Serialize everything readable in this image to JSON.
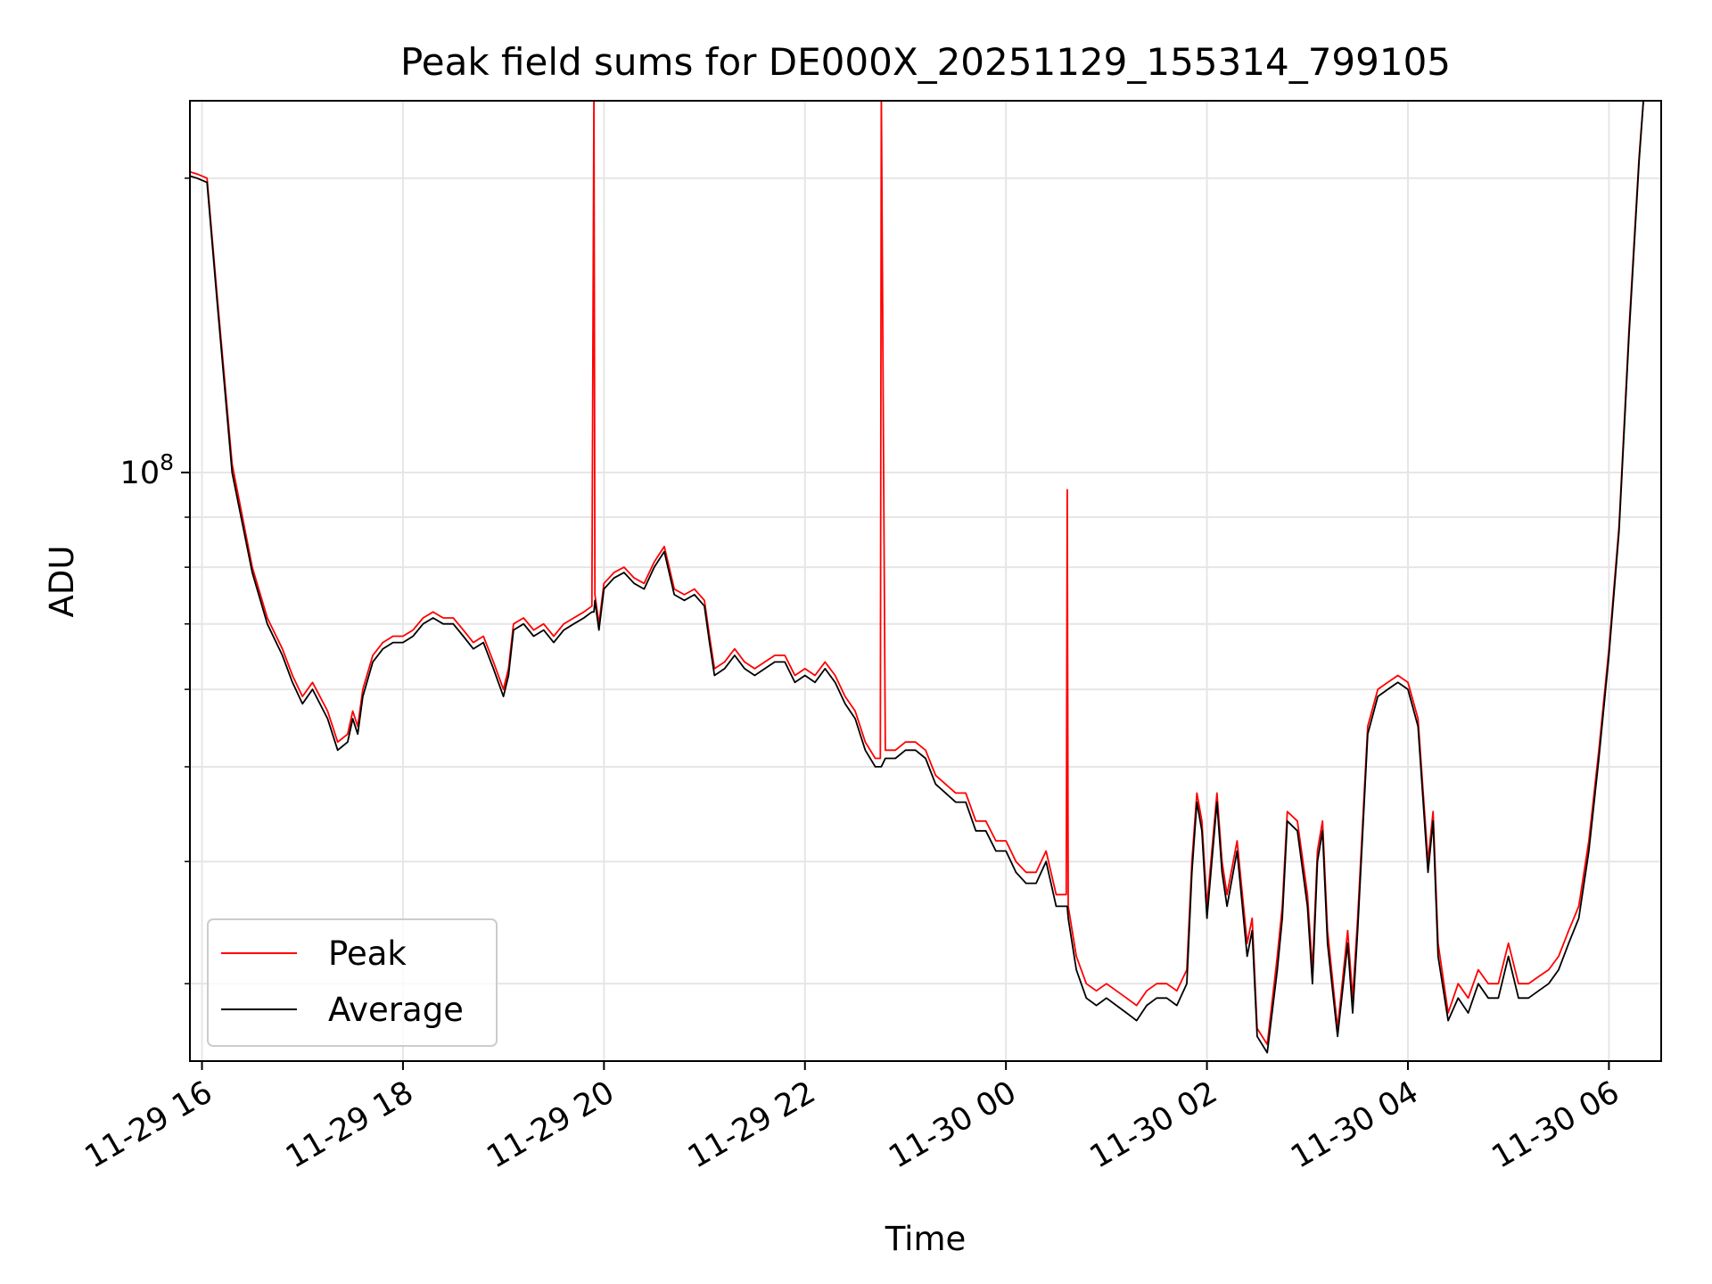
{
  "chart_data": {
    "type": "line",
    "title": "Peak field sums for DE000X_20251129_155314_799105",
    "xlabel": "Time",
    "ylabel": "ADU",
    "yscale": "log",
    "ylim": [
      25000000,
      240000000
    ],
    "x_unit": "hours since 2025-11-29 00:00",
    "xlim": [
      15.88,
      30.52
    ],
    "xticks": [
      {
        "x": 16,
        "label": "11-29 16"
      },
      {
        "x": 18,
        "label": "11-29 18"
      },
      {
        "x": 20,
        "label": "11-29 20"
      },
      {
        "x": 22,
        "label": "11-29 22"
      },
      {
        "x": 24,
        "label": "11-30 00"
      },
      {
        "x": 26,
        "label": "11-30 02"
      },
      {
        "x": 28,
        "label": "11-30 04"
      },
      {
        "x": 30,
        "label": "11-30 06"
      }
    ],
    "yticks_major": [
      {
        "y": 100000000,
        "label_base": "10",
        "label_exp": "8"
      }
    ],
    "yticks_minor": [
      30000000,
      40000000,
      50000000,
      60000000,
      70000000,
      80000000,
      90000000,
      200000000
    ],
    "grid": true,
    "legend_position": "lower-left",
    "colors": {
      "peak": "#ff0000",
      "average": "#000000",
      "grid": "#e6e6e6"
    },
    "series": [
      {
        "name": "Peak",
        "color": "#ff0000",
        "x": [
          15.88,
          15.95,
          16.05,
          16.15,
          16.3,
          16.5,
          16.65,
          16.8,
          16.9,
          17.0,
          17.1,
          17.25,
          17.35,
          17.45,
          17.5,
          17.55,
          17.6,
          17.7,
          17.8,
          17.9,
          18.0,
          18.1,
          18.2,
          18.3,
          18.4,
          18.5,
          18.6,
          18.7,
          18.8,
          18.9,
          19.0,
          19.05,
          19.1,
          19.2,
          19.3,
          19.4,
          19.5,
          19.6,
          19.7,
          19.8,
          19.88,
          19.9,
          19.91,
          19.95,
          20.0,
          20.1,
          20.2,
          20.3,
          20.4,
          20.5,
          20.6,
          20.7,
          20.8,
          20.9,
          21.0,
          21.05,
          21.1,
          21.2,
          21.3,
          21.4,
          21.5,
          21.6,
          21.7,
          21.8,
          21.9,
          22.0,
          22.1,
          22.2,
          22.3,
          22.4,
          22.5,
          22.6,
          22.7,
          22.75,
          22.76,
          22.8,
          22.9,
          23.0,
          23.1,
          23.2,
          23.3,
          23.4,
          23.5,
          23.6,
          23.7,
          23.8,
          23.9,
          24.0,
          24.1,
          24.2,
          24.3,
          24.4,
          24.5,
          24.6,
          24.61,
          24.62,
          24.7,
          24.8,
          24.9,
          25.0,
          25.1,
          25.2,
          25.3,
          25.4,
          25.5,
          25.6,
          25.7,
          25.8,
          25.85,
          25.9,
          25.95,
          26.0,
          26.1,
          26.15,
          26.2,
          26.3,
          26.4,
          26.45,
          26.5,
          26.6,
          26.7,
          26.75,
          26.8,
          26.9,
          27.0,
          27.05,
          27.1,
          27.15,
          27.2,
          27.3,
          27.4,
          27.45,
          27.5,
          27.6,
          27.7,
          27.8,
          27.9,
          28.0,
          28.1,
          28.2,
          28.25,
          28.3,
          28.4,
          28.5,
          28.6,
          28.7,
          28.8,
          28.9,
          29.0,
          29.1,
          29.2,
          29.3,
          29.4,
          29.5,
          29.6,
          29.7,
          29.8,
          29.9,
          30.0,
          30.1,
          30.2,
          30.3,
          30.35
        ],
        "values": [
          203000000,
          202000000,
          200000000,
          152000000,
          102000000,
          80000000,
          71000000,
          66000000,
          62000000,
          59000000,
          61000000,
          57000000,
          53000000,
          54000000,
          57000000,
          55000000,
          60000000,
          65000000,
          67000000,
          68000000,
          68000000,
          69000000,
          71000000,
          72000000,
          71000000,
          71000000,
          69000000,
          67000000,
          68000000,
          64000000,
          60000000,
          63000000,
          70000000,
          71000000,
          69000000,
          70000000,
          68000000,
          70000000,
          71000000,
          72000000,
          73000000,
          245000000,
          75000000,
          70000000,
          77000000,
          79000000,
          80000000,
          78000000,
          77000000,
          81000000,
          84000000,
          76000000,
          75000000,
          76000000,
          74000000,
          68000000,
          63000000,
          64000000,
          66000000,
          64000000,
          63000000,
          64000000,
          65000000,
          65000000,
          62000000,
          63000000,
          62000000,
          64000000,
          62000000,
          59000000,
          57000000,
          53000000,
          51000000,
          51000000,
          245000000,
          52000000,
          52000000,
          53000000,
          53000000,
          52000000,
          49000000,
          48000000,
          47000000,
          47000000,
          44000000,
          44000000,
          42000000,
          42000000,
          40000000,
          39000000,
          39000000,
          41000000,
          37000000,
          37000000,
          96000000,
          36000000,
          32000000,
          30000000,
          29500000,
          30000000,
          29500000,
          29000000,
          28500000,
          29500000,
          30000000,
          30000000,
          29500000,
          31000000,
          40000000,
          47000000,
          44000000,
          36000000,
          47000000,
          40000000,
          37000000,
          42000000,
          33000000,
          35000000,
          27000000,
          26000000,
          32000000,
          36000000,
          45000000,
          44000000,
          37000000,
          31000000,
          41000000,
          44000000,
          34000000,
          27000000,
          34000000,
          29000000,
          35000000,
          55000000,
          60000000,
          61000000,
          62000000,
          61000000,
          56000000,
          40000000,
          45000000,
          33000000,
          28000000,
          30000000,
          29000000,
          31000000,
          30000000,
          30000000,
          33000000,
          30000000,
          30000000,
          30500000,
          31000000,
          32000000,
          34000000,
          36000000,
          42000000,
          52000000,
          66000000,
          88000000,
          140000000,
          210000000,
          245000000
        ]
      },
      {
        "name": "Average",
        "color": "#000000",
        "x": [
          15.88,
          15.95,
          16.05,
          16.15,
          16.3,
          16.5,
          16.65,
          16.8,
          16.9,
          17.0,
          17.1,
          17.25,
          17.35,
          17.45,
          17.5,
          17.55,
          17.6,
          17.7,
          17.8,
          17.9,
          18.0,
          18.1,
          18.2,
          18.3,
          18.4,
          18.5,
          18.6,
          18.7,
          18.8,
          18.9,
          19.0,
          19.05,
          19.1,
          19.2,
          19.3,
          19.4,
          19.5,
          19.6,
          19.7,
          19.8,
          19.88,
          19.9,
          19.91,
          19.95,
          20.0,
          20.1,
          20.2,
          20.3,
          20.4,
          20.5,
          20.6,
          20.7,
          20.8,
          20.9,
          21.0,
          21.05,
          21.1,
          21.2,
          21.3,
          21.4,
          21.5,
          21.6,
          21.7,
          21.8,
          21.9,
          22.0,
          22.1,
          22.2,
          22.3,
          22.4,
          22.5,
          22.6,
          22.7,
          22.75,
          22.76,
          22.8,
          22.9,
          23.0,
          23.1,
          23.2,
          23.3,
          23.4,
          23.5,
          23.6,
          23.7,
          23.8,
          23.9,
          24.0,
          24.1,
          24.2,
          24.3,
          24.4,
          24.5,
          24.6,
          24.61,
          24.62,
          24.7,
          24.8,
          24.9,
          25.0,
          25.1,
          25.2,
          25.3,
          25.4,
          25.5,
          25.6,
          25.7,
          25.8,
          25.85,
          25.9,
          25.95,
          26.0,
          26.1,
          26.15,
          26.2,
          26.3,
          26.4,
          26.45,
          26.5,
          26.6,
          26.7,
          26.75,
          26.8,
          26.9,
          27.0,
          27.05,
          27.1,
          27.15,
          27.2,
          27.3,
          27.4,
          27.45,
          27.5,
          27.6,
          27.7,
          27.8,
          27.9,
          28.0,
          28.1,
          28.2,
          28.25,
          28.3,
          28.4,
          28.5,
          28.6,
          28.7,
          28.8,
          28.9,
          29.0,
          29.1,
          29.2,
          29.3,
          29.4,
          29.5,
          29.6,
          29.7,
          29.8,
          29.9,
          30.0,
          30.1,
          30.2,
          30.3,
          30.35
        ],
        "values": [
          201000000,
          200000000,
          198000000,
          150000000,
          100000000,
          79000000,
          70000000,
          65000000,
          61000000,
          58000000,
          60000000,
          56000000,
          52000000,
          53000000,
          56000000,
          54000000,
          59000000,
          64000000,
          66000000,
          67000000,
          67000000,
          68000000,
          70000000,
          71000000,
          70000000,
          70000000,
          68000000,
          66000000,
          67000000,
          63000000,
          59000000,
          62000000,
          69000000,
          70000000,
          68000000,
          69000000,
          67000000,
          69000000,
          70000000,
          71000000,
          72000000,
          72000000,
          74000000,
          69000000,
          76000000,
          78000000,
          79000000,
          77000000,
          76000000,
          80000000,
          83000000,
          75000000,
          74000000,
          75000000,
          73000000,
          67000000,
          62000000,
          63000000,
          65000000,
          63000000,
          62000000,
          63000000,
          64000000,
          64000000,
          61000000,
          62000000,
          61000000,
          63000000,
          61000000,
          58000000,
          56000000,
          52000000,
          50000000,
          50000000,
          50000000,
          51000000,
          51000000,
          52000000,
          52000000,
          51000000,
          48000000,
          47000000,
          46000000,
          46000000,
          43000000,
          43000000,
          41000000,
          41000000,
          39000000,
          38000000,
          38000000,
          40000000,
          36000000,
          36000000,
          36000000,
          35000000,
          31000000,
          29000000,
          28500000,
          29000000,
          28500000,
          28000000,
          27500000,
          28500000,
          29000000,
          29000000,
          28500000,
          30000000,
          39000000,
          46000000,
          43000000,
          35000000,
          46000000,
          39000000,
          36000000,
          41000000,
          32000000,
          34000000,
          26500000,
          25500000,
          31000000,
          35000000,
          44000000,
          43000000,
          36000000,
          30000000,
          40000000,
          43000000,
          33000000,
          26500000,
          33000000,
          28000000,
          34000000,
          54000000,
          59000000,
          60000000,
          61000000,
          60000000,
          55000000,
          39000000,
          44000000,
          32000000,
          27500000,
          29000000,
          28000000,
          30000000,
          29000000,
          29000000,
          32000000,
          29000000,
          29000000,
          29500000,
          30000000,
          31000000,
          33000000,
          35000000,
          41000000,
          51000000,
          65000000,
          87000000,
          138000000,
          208000000,
          245000000
        ]
      }
    ]
  }
}
